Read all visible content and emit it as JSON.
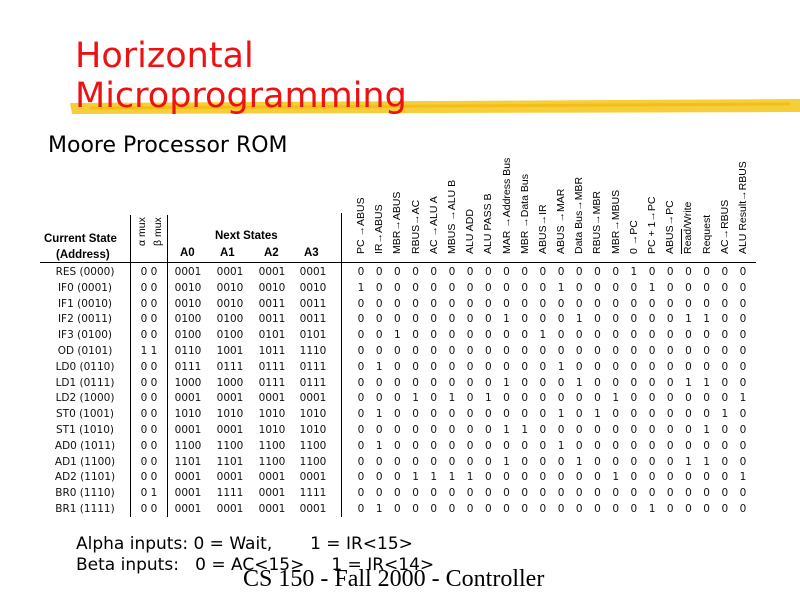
{
  "slide": {
    "title_line1": "Horizontal",
    "title_line2": "Microprogramming",
    "subtitle": "Moore Processor ROM",
    "footer": "CS 150 - Fall 2000 - Controller",
    "accent_color": "#ee1111",
    "highlight_color": "#f5c518"
  },
  "table": {
    "header": {
      "current_state": "Current State",
      "address": "(Address)",
      "alpha_mux": "α mux",
      "beta_mux": "β mux",
      "next_states": "Next States",
      "next_cols": [
        "A0",
        "A1",
        "A2",
        "A3"
      ]
    },
    "signals": [
      "PC →ABUS",
      "IR→ABUS",
      "MBR→ABUS",
      "RBUS→AC",
      "AC →ALU A",
      "MBUS →ALU B",
      "ALU ADD",
      "ALU PASS B",
      "MAR →Address Bus",
      "MBR →Data Bus",
      "ABUS→IR",
      "ABUS →MAR",
      "Data Bus→MBR",
      "RBUS→MBR",
      "MBR→MBUS",
      "0 →PC",
      "PC + 1→PC",
      "ABUS→PC",
      "Read/Write",
      "Request",
      "AC→RBUS",
      "ALU Result→RBUS"
    ],
    "rows": [
      {
        "state": "RES (0000)",
        "mux": "0 0",
        "next": [
          "0001",
          "0001",
          "0001",
          "0001"
        ],
        "bits": "0000000000000001000000"
      },
      {
        "state": "IF0 (0001)",
        "mux": "0 0",
        "next": [
          "0010",
          "0010",
          "0010",
          "0010"
        ],
        "bits": "1000000000010000100000"
      },
      {
        "state": "IF1 (0010)",
        "mux": "0 0",
        "next": [
          "0010",
          "0010",
          "0011",
          "0011"
        ],
        "bits": "0000000000000000000000"
      },
      {
        "state": "IF2 (0011)",
        "mux": "0 0",
        "next": [
          "0100",
          "0100",
          "0011",
          "0011"
        ],
        "bits": "0000000010001000001100"
      },
      {
        "state": "IF3 (0100)",
        "mux": "0 0",
        "next": [
          "0100",
          "0100",
          "0101",
          "0101"
        ],
        "bits": "0010000000100000000000"
      },
      {
        "state": "OD (0101)",
        "mux": "1 1",
        "next": [
          "0110",
          "1001",
          "1011",
          "1110"
        ],
        "bits": "0000000000000000000000"
      },
      {
        "state": "LD0 (0110)",
        "mux": "0 0",
        "next": [
          "0111",
          "0111",
          "0111",
          "0111"
        ],
        "bits": "0100000000010000000000"
      },
      {
        "state": "LD1 (0111)",
        "mux": "0 0",
        "next": [
          "1000",
          "1000",
          "0111",
          "0111"
        ],
        "bits": "0000000010001000001100"
      },
      {
        "state": "LD2 (1000)",
        "mux": "0 0",
        "next": [
          "0001",
          "0001",
          "0001",
          "0001"
        ],
        "bits": "0001010100000010000001"
      },
      {
        "state": "ST0 (1001)",
        "mux": "0 0",
        "next": [
          "1010",
          "1010",
          "1010",
          "1010"
        ],
        "bits": "0100000000010100000010"
      },
      {
        "state": "ST1 (1010)",
        "mux": "0 0",
        "next": [
          "0001",
          "0001",
          "1010",
          "1010"
        ],
        "bits": "0000000011000000000100"
      },
      {
        "state": "AD0 (1011)",
        "mux": "0 0",
        "next": [
          "1100",
          "1100",
          "1100",
          "1100"
        ],
        "bits": "0100000000010000000000"
      },
      {
        "state": "AD1 (1100)",
        "mux": "0 0",
        "next": [
          "1101",
          "1101",
          "1100",
          "1100"
        ],
        "bits": "0000000010001000001100"
      },
      {
        "state": "AD2 (1101)",
        "mux": "0 0",
        "next": [
          "0001",
          "0001",
          "0001",
          "0001"
        ],
        "bits": "0001111000000010000001"
      },
      {
        "state": "BR0 (1110)",
        "mux": "0 1",
        "next": [
          "0001",
          "1111",
          "0001",
          "1111"
        ],
        "bits": "0000000000000000000000"
      },
      {
        "state": "BR1 (1111)",
        "mux": "0 0",
        "next": [
          "0001",
          "0001",
          "0001",
          "0001"
        ],
        "bits": "0100000000000000100000"
      }
    ]
  },
  "notes": {
    "alpha": "Alpha inputs: 0 = Wait,       1 = IR<15>",
    "beta": "Beta inputs:   0 = AC<15>     1 = IR<14>"
  }
}
